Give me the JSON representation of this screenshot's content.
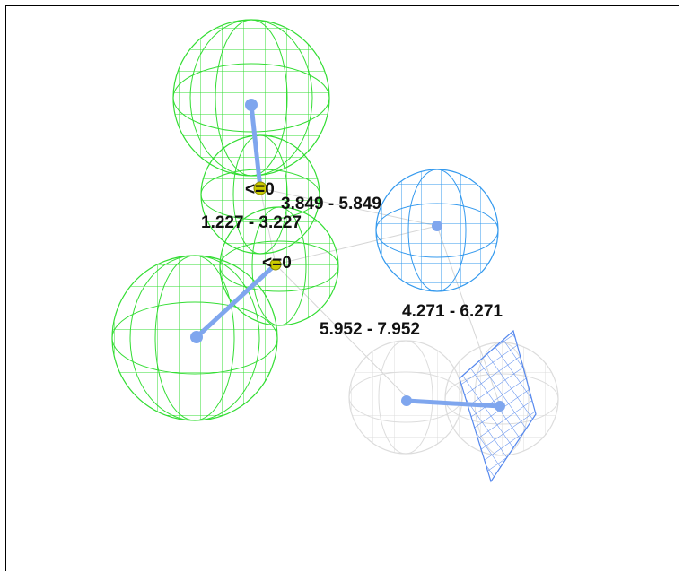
{
  "colors": {
    "hydrophobic": "#33dd33",
    "acceptor": "#3399ee",
    "excluded": "#d8d8d8",
    "plane": "#5588ee",
    "vector": "#7fa6ee",
    "marker": "#cccc00",
    "text": "#111111"
  },
  "labels": {
    "small_a": "<=0",
    "small_b": "<=0",
    "d1": "1.227 - 3.227",
    "d2": "3.849 - 5.849",
    "d3": "4.271 - 6.271",
    "d4": "5.952 - 7.952"
  }
}
